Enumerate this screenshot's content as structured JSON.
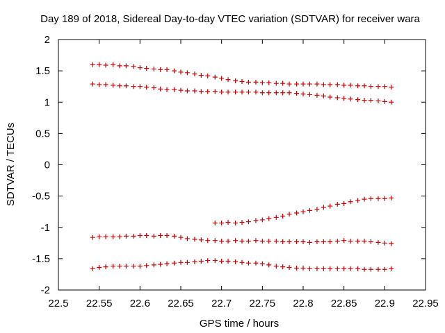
{
  "chart_data": {
    "type": "scatter",
    "title": "Day 189 of 2018, Sidereal Day-to-day VTEC variation (SDTVAR) for receiver wara",
    "xlabel": "GPS time / hours",
    "ylabel": "SDTVAR / TECUs",
    "xlim": [
      22.5,
      22.95
    ],
    "ylim": [
      -2,
      2
    ],
    "xticks": [
      22.5,
      22.55,
      22.6,
      22.65,
      22.7,
      22.75,
      22.8,
      22.85,
      22.9,
      22.95
    ],
    "xtick_labels": [
      "22.5",
      "22.55",
      "22.6",
      "22.65",
      "22.7",
      "22.75",
      "22.8",
      "22.85",
      "22.9",
      "22.95"
    ],
    "yticks": [
      2,
      1.5,
      1,
      0.5,
      0,
      -0.5,
      -1,
      -1.5,
      -2
    ],
    "ytick_labels": [
      "2",
      "1.5",
      "1",
      "0.5",
      "0",
      "-0.5",
      "-1",
      "-1.5",
      "-2"
    ],
    "marker_color": "#cc0000",
    "series": [
      {
        "name": "track 1",
        "x": [
          22.542,
          22.55,
          22.558,
          22.567,
          22.575,
          22.583,
          22.592,
          22.6,
          22.608,
          22.617,
          22.625,
          22.633,
          22.642,
          22.65,
          22.658,
          22.667,
          22.675,
          22.683,
          22.692,
          22.7,
          22.708,
          22.717,
          22.725,
          22.733,
          22.742,
          22.75,
          22.758,
          22.767,
          22.775,
          22.783,
          22.792,
          22.8,
          22.808,
          22.817,
          22.825,
          22.833,
          22.842,
          22.85,
          22.858,
          22.867,
          22.875,
          22.883,
          22.892,
          22.9,
          22.908
        ],
        "y": [
          1.6,
          1.6,
          1.59,
          1.6,
          1.58,
          1.58,
          1.57,
          1.55,
          1.54,
          1.53,
          1.52,
          1.52,
          1.5,
          1.48,
          1.47,
          1.45,
          1.43,
          1.42,
          1.4,
          1.38,
          1.36,
          1.34,
          1.33,
          1.32,
          1.32,
          1.31,
          1.31,
          1.3,
          1.3,
          1.29,
          1.29,
          1.29,
          1.29,
          1.29,
          1.28,
          1.28,
          1.28,
          1.27,
          1.27,
          1.26,
          1.26,
          1.25,
          1.25,
          1.25,
          1.24
        ]
      },
      {
        "name": "track 2",
        "x": [
          22.542,
          22.55,
          22.558,
          22.567,
          22.575,
          22.583,
          22.592,
          22.6,
          22.608,
          22.617,
          22.625,
          22.633,
          22.642,
          22.65,
          22.658,
          22.667,
          22.675,
          22.683,
          22.692,
          22.7,
          22.708,
          22.717,
          22.725,
          22.733,
          22.742,
          22.75,
          22.758,
          22.767,
          22.775,
          22.783,
          22.792,
          22.8,
          22.808,
          22.817,
          22.825,
          22.833,
          22.842,
          22.85,
          22.858,
          22.867,
          22.875,
          22.883,
          22.892,
          22.9,
          22.908
        ],
        "y": [
          1.29,
          1.28,
          1.28,
          1.27,
          1.26,
          1.26,
          1.25,
          1.25,
          1.24,
          1.23,
          1.21,
          1.2,
          1.2,
          1.19,
          1.18,
          1.18,
          1.17,
          1.17,
          1.17,
          1.16,
          1.16,
          1.16,
          1.16,
          1.16,
          1.16,
          1.15,
          1.15,
          1.15,
          1.15,
          1.15,
          1.14,
          1.13,
          1.12,
          1.11,
          1.1,
          1.08,
          1.07,
          1.06,
          1.05,
          1.04,
          1.03,
          1.03,
          1.02,
          1.01,
          1.0
        ]
      },
      {
        "name": "track 3",
        "x": [
          22.692,
          22.7,
          22.708,
          22.717,
          22.725,
          22.733,
          22.742,
          22.75,
          22.758,
          22.767,
          22.775,
          22.783,
          22.792,
          22.8,
          22.808,
          22.817,
          22.825,
          22.833,
          22.842,
          22.85,
          22.858,
          22.867,
          22.875,
          22.883,
          22.892,
          22.9,
          22.908
        ],
        "y": [
          -0.93,
          -0.93,
          -0.92,
          -0.93,
          -0.92,
          -0.91,
          -0.89,
          -0.88,
          -0.86,
          -0.84,
          -0.82,
          -0.79,
          -0.77,
          -0.75,
          -0.73,
          -0.71,
          -0.68,
          -0.66,
          -0.63,
          -0.62,
          -0.59,
          -0.57,
          -0.55,
          -0.54,
          -0.54,
          -0.54,
          -0.53
        ]
      },
      {
        "name": "track 4",
        "x": [
          22.542,
          22.55,
          22.558,
          22.567,
          22.575,
          22.583,
          22.592,
          22.6,
          22.608,
          22.617,
          22.625,
          22.633,
          22.642,
          22.65,
          22.658,
          22.667,
          22.675,
          22.683,
          22.692,
          22.7,
          22.708,
          22.717,
          22.725,
          22.733,
          22.742,
          22.75,
          22.758,
          22.767,
          22.775,
          22.783,
          22.792,
          22.8,
          22.808,
          22.817,
          22.825,
          22.833,
          22.842,
          22.85,
          22.858,
          22.867,
          22.875,
          22.883,
          22.892,
          22.9,
          22.908
        ],
        "y": [
          -1.16,
          -1.15,
          -1.15,
          -1.15,
          -1.15,
          -1.14,
          -1.14,
          -1.13,
          -1.13,
          -1.14,
          -1.13,
          -1.13,
          -1.14,
          -1.16,
          -1.18,
          -1.19,
          -1.2,
          -1.21,
          -1.21,
          -1.22,
          -1.22,
          -1.21,
          -1.22,
          -1.22,
          -1.21,
          -1.22,
          -1.22,
          -1.22,
          -1.23,
          -1.23,
          -1.23,
          -1.23,
          -1.24,
          -1.23,
          -1.23,
          -1.23,
          -1.22,
          -1.21,
          -1.22,
          -1.22,
          -1.22,
          -1.23,
          -1.24,
          -1.25,
          -1.26
        ]
      },
      {
        "name": "track 5",
        "x": [
          22.542,
          22.55,
          22.558,
          22.567,
          22.575,
          22.583,
          22.592,
          22.6,
          22.608,
          22.617,
          22.625,
          22.633,
          22.642,
          22.65,
          22.658,
          22.667,
          22.675,
          22.683,
          22.692,
          22.7,
          22.708,
          22.717,
          22.725,
          22.733,
          22.742,
          22.75,
          22.758,
          22.767,
          22.775,
          22.783,
          22.792,
          22.8,
          22.808,
          22.817,
          22.825,
          22.833,
          22.842,
          22.85,
          22.858,
          22.867,
          22.875,
          22.883,
          22.892,
          22.9,
          22.908
        ],
        "y": [
          -1.66,
          -1.64,
          -1.63,
          -1.62,
          -1.62,
          -1.62,
          -1.62,
          -1.62,
          -1.61,
          -1.6,
          -1.59,
          -1.58,
          -1.57,
          -1.56,
          -1.56,
          -1.55,
          -1.54,
          -1.53,
          -1.53,
          -1.54,
          -1.54,
          -1.55,
          -1.56,
          -1.57,
          -1.57,
          -1.58,
          -1.6,
          -1.62,
          -1.63,
          -1.64,
          -1.65,
          -1.65,
          -1.66,
          -1.66,
          -1.66,
          -1.66,
          -1.66,
          -1.66,
          -1.66,
          -1.66,
          -1.67,
          -1.67,
          -1.67,
          -1.67,
          -1.66
        ]
      }
    ]
  }
}
